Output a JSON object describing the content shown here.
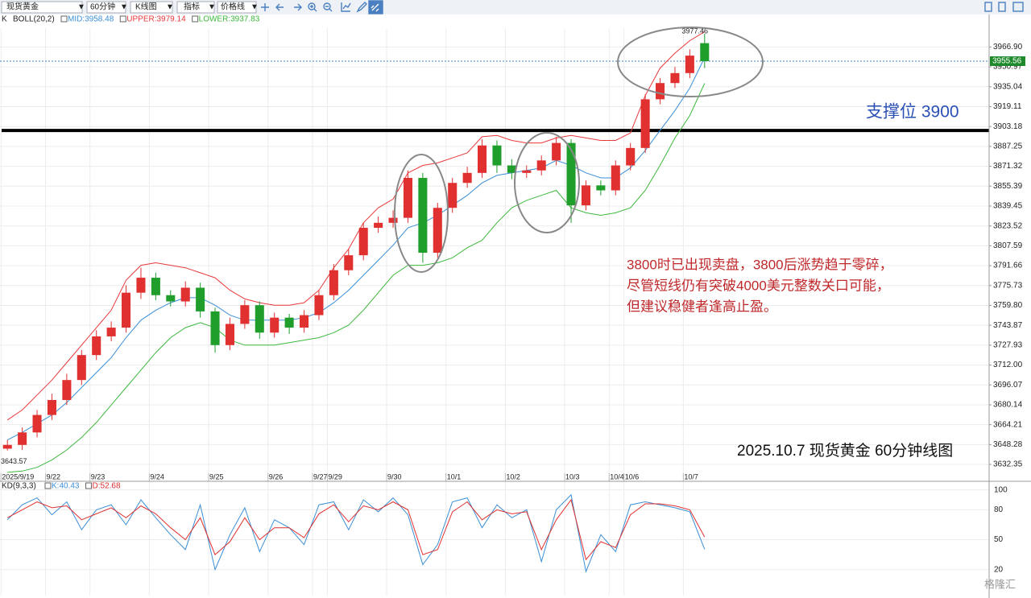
{
  "toolbar": {
    "selects": [
      "现货黄金",
      "60分钟",
      "K线图",
      "指标",
      "价格线"
    ]
  },
  "watermark": "格隆汇",
  "chart_data": [
    {
      "type": "candlestick",
      "indicator": "K",
      "indicator2": "BOLL(20,2)",
      "categories": [
        "2025/9/19",
        null,
        null,
        "9/22",
        null,
        null,
        "9/23",
        null,
        null,
        null,
        "9/24",
        null,
        null,
        null,
        "9/25",
        null,
        null,
        null,
        "9/26",
        null,
        null,
        "9/27",
        "9/29",
        null,
        null,
        null,
        "9/30",
        null,
        null,
        null,
        "10/1",
        null,
        null,
        null,
        "10/2",
        null,
        null,
        null,
        "10/3",
        null,
        null,
        "10/4",
        "10/6",
        null,
        null,
        null,
        "10/7",
        null
      ],
      "open": [
        3645,
        3648,
        3658,
        3672,
        3684,
        3700,
        3720,
        3735,
        3742,
        3770,
        3782,
        3768,
        3763,
        3774,
        3755,
        3728,
        3745,
        3760,
        3738,
        3750,
        3742,
        3752,
        3768,
        3788,
        3800,
        3822,
        3826,
        3830,
        3862,
        3802,
        3838,
        3858,
        3866,
        3888,
        3872,
        3866,
        3868,
        3876,
        3890,
        3840,
        3856,
        3852,
        3872,
        3886,
        3925,
        3938,
        3946,
        3970
      ],
      "high": [
        3652,
        3662,
        3676,
        3689,
        3705,
        3724,
        3740,
        3747,
        3776,
        3790,
        3786,
        3772,
        3779,
        3778,
        3758,
        3750,
        3764,
        3763,
        3754,
        3753,
        3756,
        3772,
        3793,
        3805,
        3826,
        3831,
        3836,
        3868,
        3866,
        3842,
        3862,
        3871,
        3893,
        3892,
        3877,
        3872,
        3880,
        3895,
        3893,
        3860,
        3860,
        3876,
        3890,
        3929,
        3942,
        3951,
        3965,
        3977.46
      ],
      "low": [
        3643.57,
        3644,
        3654,
        3668,
        3680,
        3696,
        3716,
        3731,
        3738,
        3765,
        3764,
        3759,
        3759,
        3750,
        3722,
        3724,
        3741,
        3733,
        3734,
        3737,
        3738,
        3748,
        3764,
        3784,
        3796,
        3818,
        3822,
        3826,
        3794,
        3798,
        3834,
        3854,
        3862,
        3866,
        3861,
        3862,
        3864,
        3872,
        3826,
        3836,
        3848,
        3848,
        3868,
        3882,
        3921,
        3934,
        3942,
        3950
      ],
      "close": [
        3648,
        3658,
        3672,
        3684,
        3700,
        3720,
        3735,
        3742,
        3770,
        3782,
        3768,
        3763,
        3774,
        3755,
        3728,
        3745,
        3760,
        3738,
        3750,
        3742,
        3752,
        3768,
        3788,
        3800,
        3822,
        3826,
        3830,
        3862,
        3802,
        3838,
        3858,
        3866,
        3888,
        3872,
        3866,
        3868,
        3876,
        3890,
        3840,
        3856,
        3852,
        3872,
        3886,
        3925,
        3938,
        3946,
        3960,
        3955.56
      ],
      "up_color": "#e0302f",
      "down_color": "#1f9e2c",
      "series": [
        {
          "name": "MID:3958.48",
          "color": "#3a8fd8",
          "values": [
            3652,
            3658,
            3665,
            3672,
            3682,
            3694,
            3706,
            3718,
            3734,
            3748,
            3756,
            3762,
            3766,
            3766,
            3760,
            3752,
            3748,
            3748,
            3748,
            3748,
            3750,
            3754,
            3762,
            3772,
            3784,
            3796,
            3808,
            3822,
            3826,
            3832,
            3840,
            3848,
            3858,
            3864,
            3866,
            3868,
            3870,
            3876,
            3872,
            3866,
            3862,
            3862,
            3870,
            3884,
            3900,
            3916,
            3934,
            3958.48
          ]
        },
        {
          "name": "UPPER:3979.14",
          "color": "#e8383a",
          "values": [
            3668,
            3676,
            3688,
            3700,
            3714,
            3728,
            3742,
            3756,
            3780,
            3792,
            3794,
            3792,
            3790,
            3786,
            3782,
            3772,
            3765,
            3762,
            3760,
            3760,
            3762,
            3772,
            3790,
            3805,
            3826,
            3838,
            3845,
            3866,
            3872,
            3874,
            3878,
            3882,
            3895,
            3896,
            3892,
            3890,
            3890,
            3894,
            3896,
            3894,
            3892,
            3892,
            3898,
            3928,
            3950,
            3962,
            3972,
            3979.14
          ]
        },
        {
          "name": "LOWER:3937.83",
          "color": "#3cb83c",
          "values": [
            3626,
            3627,
            3630,
            3636,
            3644,
            3654,
            3666,
            3680,
            3694,
            3708,
            3722,
            3734,
            3742,
            3746,
            3742,
            3732,
            3728,
            3728,
            3728,
            3730,
            3732,
            3734,
            3738,
            3744,
            3756,
            3770,
            3784,
            3792,
            3792,
            3794,
            3798,
            3806,
            3812,
            3826,
            3838,
            3844,
            3848,
            3852,
            3838,
            3834,
            3832,
            3834,
            3838,
            3852,
            3872,
            3894,
            3912,
            3937.83
          ]
        }
      ],
      "ylim": [
        3624,
        3982
      ],
      "yticks": [
        {
          "value": 3966.9,
          "label": "3966.90"
        },
        {
          "value": 3950.97,
          "label": "3950.97"
        },
        {
          "value": 3935.04,
          "label": "3935.04"
        },
        {
          "value": 3919.11,
          "label": "3919.11"
        },
        {
          "value": 3903.18,
          "label": "3903.18"
        },
        {
          "value": 3887.25,
          "label": "3887.25"
        },
        {
          "value": 3871.32,
          "label": "3871.32"
        },
        {
          "value": 3855.39,
          "label": "3855.39"
        },
        {
          "value": 3839.45,
          "label": "3839.45"
        },
        {
          "value": 3823.52,
          "label": "3823.52"
        },
        {
          "value": 3807.59,
          "label": "3807.59"
        },
        {
          "value": 3791.66,
          "label": "3791.66"
        },
        {
          "value": 3775.73,
          "label": "3775.73"
        },
        {
          "value": 3759.8,
          "label": "3759.80"
        },
        {
          "value": 3743.87,
          "label": "3743.87"
        },
        {
          "value": 3727.93,
          "label": "3727.93"
        },
        {
          "value": 3712,
          "label": "3712.00"
        },
        {
          "value": 3696.07,
          "label": "3696.07"
        },
        {
          "value": 3680.14,
          "label": "3680.14"
        },
        {
          "value": 3664.21,
          "label": "3664.21"
        },
        {
          "value": 3648.28,
          "label": "3648.28"
        },
        {
          "value": 3632.35,
          "label": "3632.35"
        }
      ],
      "grid": true,
      "last_price": 3955.56,
      "support_level": 3900,
      "support_label": "支撑位 3900",
      "note": [
        "3800时已出现卖盘，3800后涨势趋于零碎，",
        "尽管短线仍有突破4000美元整数关口可能，",
        "但建议稳健者逢高止盈。"
      ],
      "caption": "2025.10.7 现货黄金 60分钟线图"
    },
    {
      "type": "line",
      "indicator": "KD(9,3,3)",
      "series": [
        {
          "name": "K:40.43",
          "color": "#3a8fd8",
          "values": [
            70,
            85,
            92,
            75,
            88,
            60,
            80,
            85,
            65,
            90,
            72,
            55,
            40,
            85,
            20,
            55,
            82,
            38,
            70,
            62,
            45,
            85,
            88,
            60,
            90,
            78,
            92,
            75,
            25,
            45,
            88,
            92,
            62,
            85,
            72,
            80,
            28,
            80,
            95,
            18,
            55,
            38,
            85,
            88,
            85,
            82,
            78,
            40.43
          ]
        },
        {
          "name": "D:52.68",
          "color": "#e0302f",
          "values": [
            72,
            80,
            88,
            82,
            84,
            70,
            76,
            82,
            72,
            84,
            76,
            62,
            50,
            72,
            35,
            48,
            72,
            50,
            62,
            62,
            52,
            76,
            85,
            68,
            84,
            80,
            88,
            80,
            35,
            40,
            78,
            88,
            70,
            80,
            76,
            78,
            40,
            70,
            90,
            30,
            48,
            42,
            75,
            86,
            86,
            84,
            80,
            52.68
          ]
        }
      ],
      "ylim": [
        0,
        107
      ],
      "yticks": [
        100,
        80,
        50,
        20
      ],
      "grid": true
    }
  ]
}
